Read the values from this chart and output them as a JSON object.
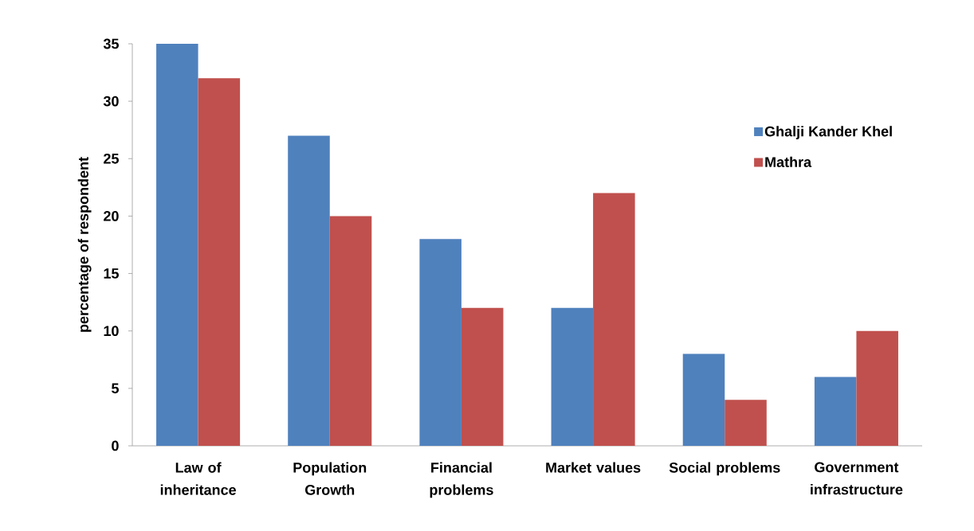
{
  "chart_data": {
    "type": "bar",
    "categories": [
      "Law of inheritance",
      "Population Growth",
      "Financial problems",
      "Market values",
      "Social problems",
      "Government infrastructure"
    ],
    "series": [
      {
        "name": "Ghalji Kander Khel",
        "color": "#4f81bd",
        "values": [
          35,
          27,
          18,
          12,
          8,
          6
        ]
      },
      {
        "name": "Mathra",
        "color": "#c0504d",
        "values": [
          32,
          20,
          12,
          22,
          4,
          10
        ]
      }
    ],
    "ylabel": "percentage of respondent",
    "ylim": [
      0,
      35
    ],
    "yticks": [
      0,
      5,
      10,
      15,
      20,
      25,
      30,
      35
    ],
    "legend": "top right"
  }
}
